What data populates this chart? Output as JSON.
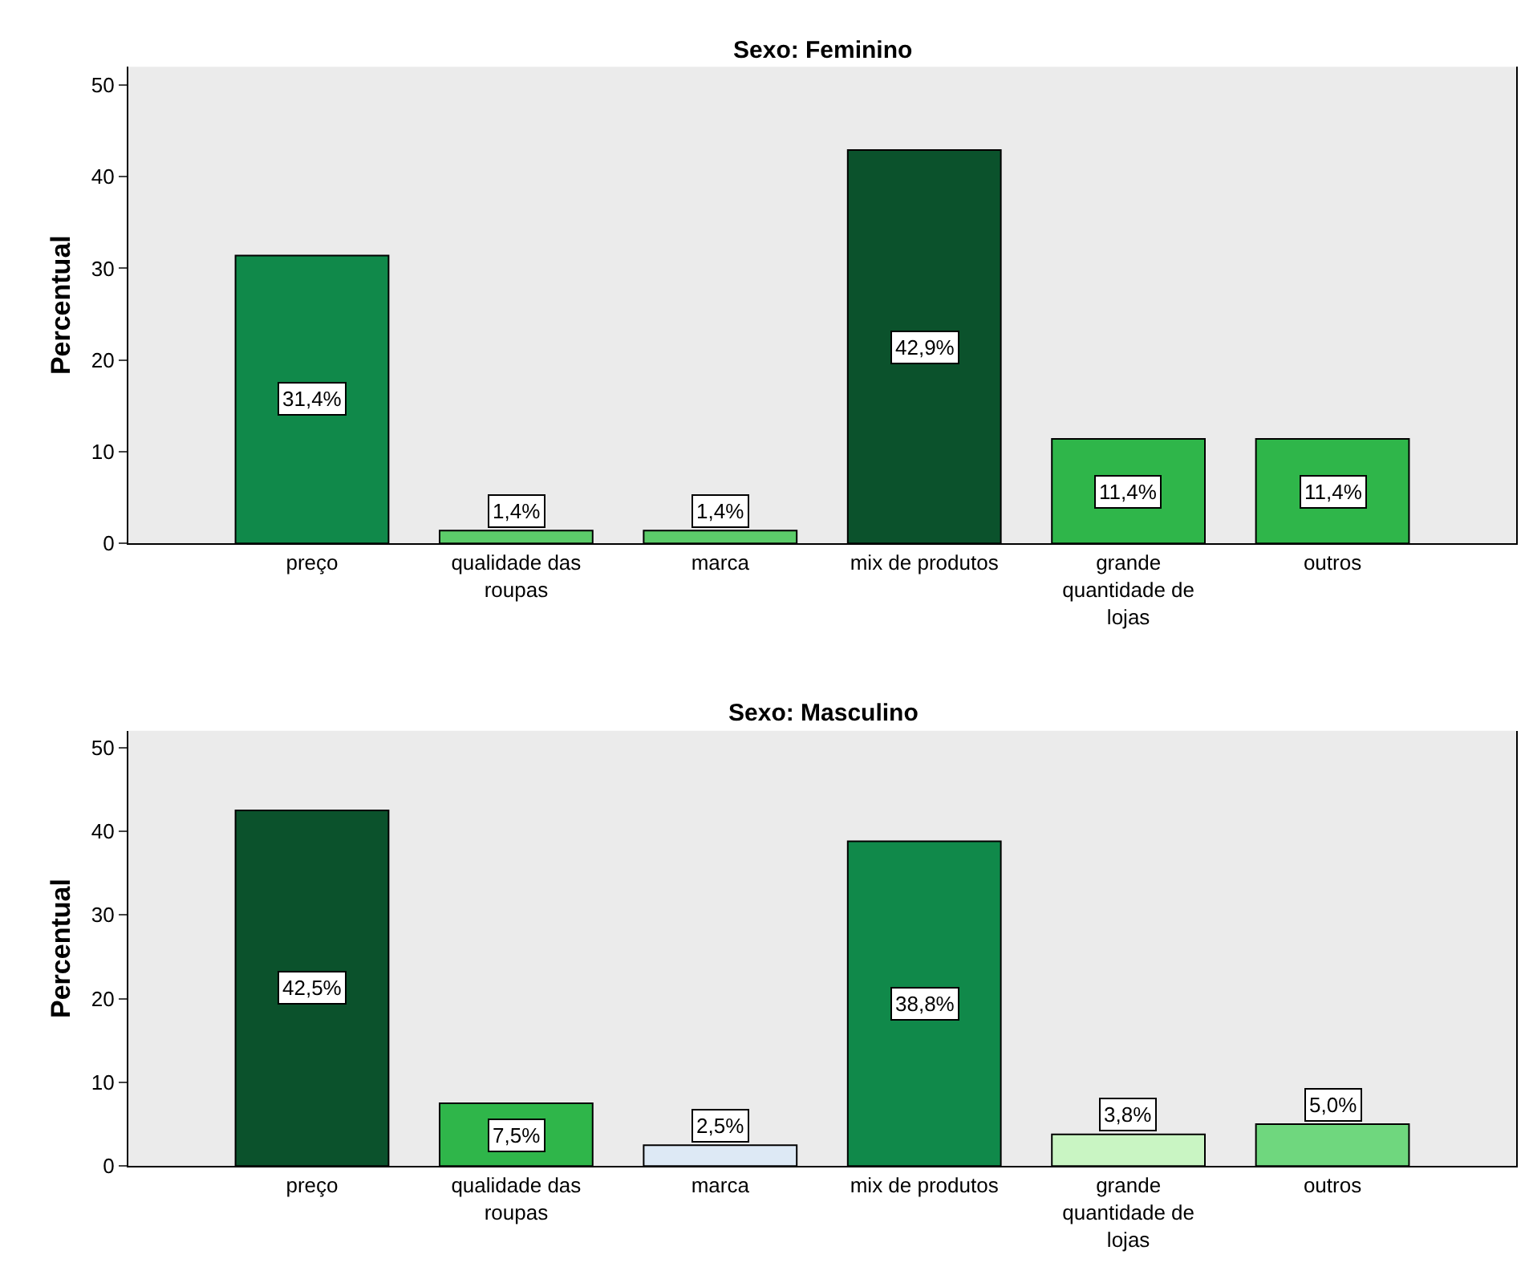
{
  "chart_data": [
    {
      "type": "bar",
      "title": "Sexo: Feminino",
      "ylabel": "Percentual",
      "categories": [
        "preço",
        "qualidade das roupas",
        "marca",
        "mix de produtos",
        "grande quantidade de lojas",
        "outros"
      ],
      "values": [
        31.4,
        1.4,
        1.4,
        42.9,
        11.4,
        11.4
      ],
      "colors": [
        "#10894a",
        "#5ccc6a",
        "#5ccc6a",
        "#0b522c",
        "#2fb64a",
        "#2fb64a"
      ],
      "value_labels": [
        "31,4%",
        "1,4%",
        "1,4%",
        "42,9%",
        "11,4%",
        "11,4%"
      ],
      "ylim": [
        0,
        52
      ],
      "yticks": [
        0,
        10,
        20,
        30,
        40,
        50
      ]
    },
    {
      "type": "bar",
      "title": "Sexo: Masculino",
      "ylabel": "Percentual",
      "categories": [
        "preço",
        "qualidade das roupas",
        "marca",
        "mix de produtos",
        "grande quantidade de lojas",
        "outros"
      ],
      "values": [
        42.5,
        7.5,
        2.5,
        38.8,
        3.8,
        5.0
      ],
      "colors": [
        "#0b522c",
        "#2fb64a",
        "#dde9f5",
        "#10894a",
        "#c9f5c3",
        "#6fd77e"
      ],
      "value_labels": [
        "42,5%",
        "7,5%",
        "2,5%",
        "38,8%",
        "3,8%",
        "5,0%"
      ],
      "ylim": [
        0,
        52
      ],
      "yticks": [
        0,
        10,
        20,
        30,
        40,
        50
      ]
    }
  ]
}
